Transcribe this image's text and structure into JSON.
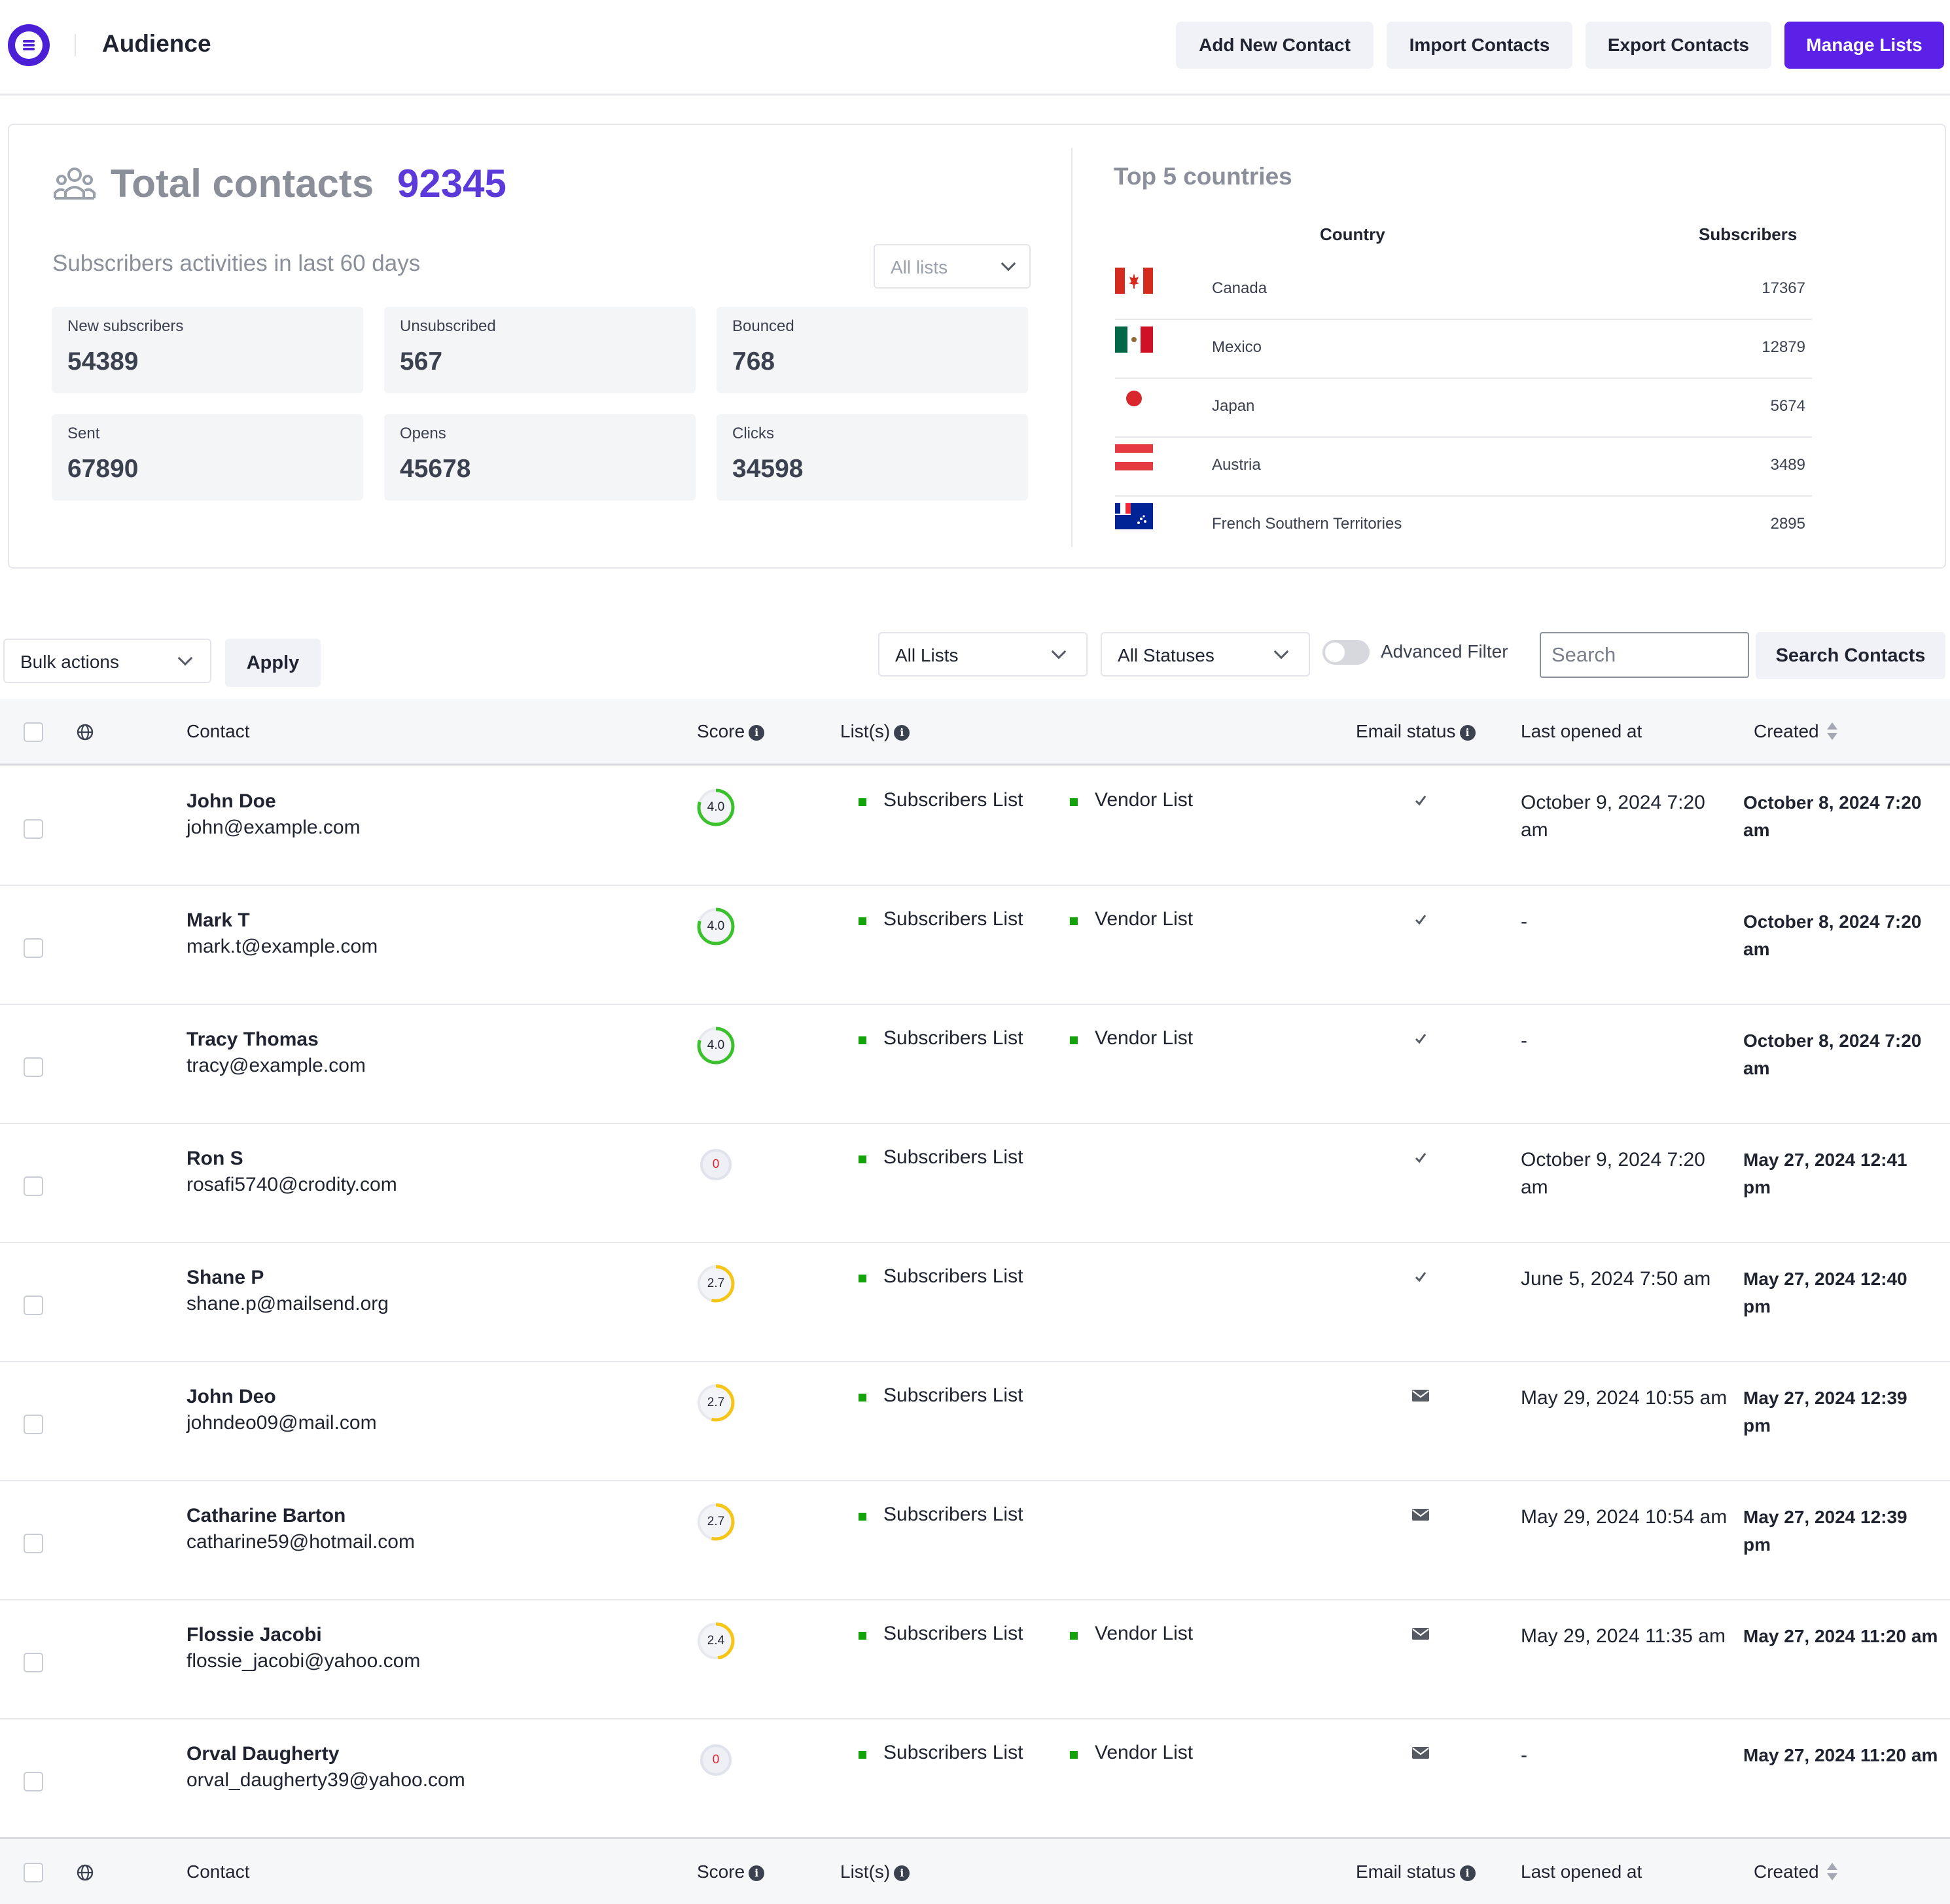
{
  "header": {
    "title": "Audience",
    "buttons": {
      "add_contact": "Add New Contact",
      "import": "Import Contacts",
      "export": "Export Contacts",
      "manage_lists": "Manage Lists"
    },
    "accent_color": "#5b21e6"
  },
  "summary": {
    "total_label": "Total contacts",
    "total_value": "92345",
    "activity_title": "Subscribers activities in last 60 days",
    "list_filter": "All lists",
    "cards": [
      {
        "label": "New subscribers",
        "value": "54389"
      },
      {
        "label": "Unsubscribed",
        "value": "567"
      },
      {
        "label": "Bounced",
        "value": "768"
      },
      {
        "label": "Sent",
        "value": "67890"
      },
      {
        "label": "Opens",
        "value": "45678"
      },
      {
        "label": "Clicks",
        "value": "34598"
      }
    ]
  },
  "countries": {
    "title": "Top 5 countries",
    "col_country": "Country",
    "col_subscribers": "Subscribers",
    "rows": [
      {
        "flag": "canada-flag-icon",
        "name": "Canada",
        "subscribers": "17367"
      },
      {
        "flag": "mexico-flag-icon",
        "name": "Mexico",
        "subscribers": "12879"
      },
      {
        "flag": "japan-flag-icon",
        "name": "Japan",
        "subscribers": "5674"
      },
      {
        "flag": "austria-flag-icon",
        "name": "Austria",
        "subscribers": "3489"
      },
      {
        "flag": "french-southern-territories-flag-icon",
        "name": "French Southern Territories",
        "subscribers": "2895"
      }
    ]
  },
  "filters": {
    "bulk_actions": "Bulk actions",
    "apply": "Apply",
    "lists": "All Lists",
    "statuses": "All Statuses",
    "advanced_filter": "Advanced Filter",
    "search_placeholder": "Search",
    "search_button": "Search Contacts"
  },
  "table": {
    "columns": {
      "contact": "Contact",
      "score": "Score",
      "lists": "List(s)",
      "email_status": "Email status",
      "last_opened": "Last opened at",
      "created": "Created"
    },
    "rows": [
      {
        "name": "John Doe",
        "email": "john@example.com",
        "score": "4.0",
        "score_fraction": 0.8,
        "lists": [
          "Subscribers List",
          "Vendor List"
        ],
        "status_icon": "check-icon",
        "last_opened": "October 9, 2024 7:20 am",
        "created": "October 8, 2024 7:20 am"
      },
      {
        "name": "Mark T",
        "email": "mark.t@example.com",
        "score": "4.0",
        "score_fraction": 0.8,
        "lists": [
          "Subscribers List",
          "Vendor List"
        ],
        "status_icon": "check-icon",
        "last_opened": "-",
        "created": "October 8, 2024 7:20 am"
      },
      {
        "name": "Tracy Thomas",
        "email": "tracy@example.com",
        "score": "4.0",
        "score_fraction": 0.8,
        "lists": [
          "Subscribers List",
          "Vendor List"
        ],
        "status_icon": "check-icon",
        "last_opened": "-",
        "created": "October 8, 2024 7:20 am"
      },
      {
        "name": "Ron S",
        "email": "rosafi5740@crodity.com",
        "score": "0",
        "score_fraction": 0,
        "lists": [
          "Subscribers List"
        ],
        "status_icon": "check-icon",
        "last_opened": "October 9, 2024 7:20 am",
        "created": "May 27, 2024 12:41 pm"
      },
      {
        "name": "Shane P",
        "email": "shane.p@mailsend.org",
        "score": "2.7",
        "score_fraction": 0.54,
        "lists": [
          "Subscribers List"
        ],
        "status_icon": "check-icon",
        "last_opened": "June 5, 2024 7:50 am",
        "created": "May 27, 2024 12:40 pm"
      },
      {
        "name": "John Deo",
        "email": "johndeo09@mail.com",
        "score": "2.7",
        "score_fraction": 0.54,
        "lists": [
          "Subscribers List"
        ],
        "status_icon": "envelope-icon",
        "last_opened": "May 29, 2024 10:55 am",
        "created": "May 27, 2024 12:39 pm"
      },
      {
        "name": "Catharine Barton",
        "email": "catharine59@hotmail.com",
        "score": "2.7",
        "score_fraction": 0.54,
        "lists": [
          "Subscribers List"
        ],
        "status_icon": "envelope-icon",
        "last_opened": "May 29, 2024 10:54 am",
        "created": "May 27, 2024 12:39 pm"
      },
      {
        "name": "Flossie Jacobi",
        "email": "flossie_jacobi@yahoo.com",
        "score": "2.4",
        "score_fraction": 0.48,
        "lists": [
          "Subscribers List",
          "Vendor List"
        ],
        "status_icon": "envelope-icon",
        "last_opened": "May 29, 2024 11:35 am",
        "created": "May 27, 2024 11:20 am"
      },
      {
        "name": "Orval Daugherty",
        "email": "orval_daugherty39@yahoo.com",
        "score": "0",
        "score_fraction": 0,
        "lists": [
          "Subscribers List",
          "Vendor List"
        ],
        "status_icon": "envelope-icon",
        "last_opened": "-",
        "created": "May 27, 2024 11:20 am"
      }
    ]
  }
}
